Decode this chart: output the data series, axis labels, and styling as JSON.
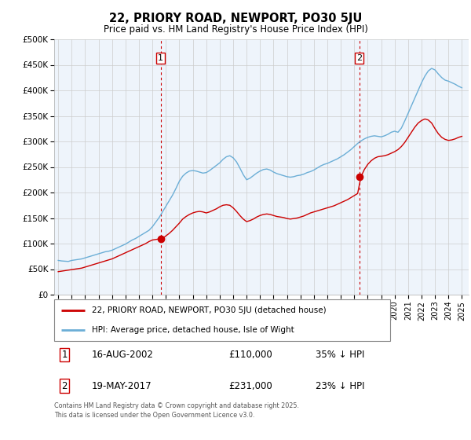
{
  "title": "22, PRIORY ROAD, NEWPORT, PO30 5JU",
  "subtitle": "Price paid vs. HM Land Registry's House Price Index (HPI)",
  "background_color": "#ffffff",
  "plot_bg_color": "#eef4fb",
  "grid_color": "#cccccc",
  "hpi_color": "#6baed6",
  "price_color": "#cc0000",
  "ylim": [
    0,
    500000
  ],
  "yticks": [
    0,
    50000,
    100000,
    150000,
    200000,
    250000,
    300000,
    350000,
    400000,
    450000,
    500000
  ],
  "ytick_labels": [
    "£0",
    "£50K",
    "£100K",
    "£150K",
    "£200K",
    "£250K",
    "£300K",
    "£350K",
    "£400K",
    "£450K",
    "£500K"
  ],
  "xlim_start": 1994.7,
  "xlim_end": 2025.5,
  "xticks": [
    1995,
    1996,
    1997,
    1998,
    1999,
    2000,
    2001,
    2002,
    2003,
    2004,
    2005,
    2006,
    2007,
    2008,
    2009,
    2010,
    2011,
    2012,
    2013,
    2014,
    2015,
    2016,
    2017,
    2018,
    2019,
    2020,
    2021,
    2022,
    2023,
    2024,
    2025
  ],
  "marker1_x": 2002.62,
  "marker1_y": 110000,
  "marker2_x": 2017.38,
  "marker2_y": 231000,
  "vline1_x": 2002.62,
  "vline2_x": 2017.38,
  "legend_label_price": "22, PRIORY ROAD, NEWPORT, PO30 5JU (detached house)",
  "legend_label_hpi": "HPI: Average price, detached house, Isle of Wight",
  "annotation1_num": "1",
  "annotation2_num": "2",
  "table_row1": [
    "1",
    "16-AUG-2002",
    "£110,000",
    "35% ↓ HPI"
  ],
  "table_row2": [
    "2",
    "19-MAY-2017",
    "£231,000",
    "23% ↓ HPI"
  ],
  "footer": "Contains HM Land Registry data © Crown copyright and database right 2025.\nThis data is licensed under the Open Government Licence v3.0.",
  "hpi_data": [
    [
      1995.0,
      67000
    ],
    [
      1995.25,
      66000
    ],
    [
      1995.5,
      65500
    ],
    [
      1995.75,
      65000
    ],
    [
      1996.0,
      67000
    ],
    [
      1996.25,
      68000
    ],
    [
      1996.5,
      69000
    ],
    [
      1996.75,
      70000
    ],
    [
      1997.0,
      72000
    ],
    [
      1997.25,
      74000
    ],
    [
      1997.5,
      76000
    ],
    [
      1997.75,
      78000
    ],
    [
      1998.0,
      80000
    ],
    [
      1998.25,
      82000
    ],
    [
      1998.5,
      84000
    ],
    [
      1998.75,
      85000
    ],
    [
      1999.0,
      87000
    ],
    [
      1999.25,
      90000
    ],
    [
      1999.5,
      93000
    ],
    [
      1999.75,
      96000
    ],
    [
      2000.0,
      99000
    ],
    [
      2000.25,
      103000
    ],
    [
      2000.5,
      107000
    ],
    [
      2000.75,
      110000
    ],
    [
      2001.0,
      114000
    ],
    [
      2001.25,
      118000
    ],
    [
      2001.5,
      122000
    ],
    [
      2001.75,
      126000
    ],
    [
      2002.0,
      133000
    ],
    [
      2002.25,
      142000
    ],
    [
      2002.5,
      151000
    ],
    [
      2002.75,
      162000
    ],
    [
      2003.0,
      173000
    ],
    [
      2003.25,
      184000
    ],
    [
      2003.5,
      195000
    ],
    [
      2003.75,
      208000
    ],
    [
      2004.0,
      222000
    ],
    [
      2004.25,
      232000
    ],
    [
      2004.5,
      238000
    ],
    [
      2004.75,
      242000
    ],
    [
      2005.0,
      243000
    ],
    [
      2005.25,
      242000
    ],
    [
      2005.5,
      240000
    ],
    [
      2005.75,
      238000
    ],
    [
      2006.0,
      239000
    ],
    [
      2006.25,
      243000
    ],
    [
      2006.5,
      248000
    ],
    [
      2006.75,
      253000
    ],
    [
      2007.0,
      258000
    ],
    [
      2007.25,
      265000
    ],
    [
      2007.5,
      270000
    ],
    [
      2007.75,
      272000
    ],
    [
      2008.0,
      268000
    ],
    [
      2008.25,
      260000
    ],
    [
      2008.5,
      248000
    ],
    [
      2008.75,
      235000
    ],
    [
      2009.0,
      225000
    ],
    [
      2009.25,
      228000
    ],
    [
      2009.5,
      233000
    ],
    [
      2009.75,
      238000
    ],
    [
      2010.0,
      242000
    ],
    [
      2010.25,
      245000
    ],
    [
      2010.5,
      246000
    ],
    [
      2010.75,
      244000
    ],
    [
      2011.0,
      240000
    ],
    [
      2011.25,
      237000
    ],
    [
      2011.5,
      235000
    ],
    [
      2011.75,
      233000
    ],
    [
      2012.0,
      231000
    ],
    [
      2012.25,
      230000
    ],
    [
      2012.5,
      231000
    ],
    [
      2012.75,
      233000
    ],
    [
      2013.0,
      234000
    ],
    [
      2013.25,
      236000
    ],
    [
      2013.5,
      239000
    ],
    [
      2013.75,
      241000
    ],
    [
      2014.0,
      244000
    ],
    [
      2014.25,
      248000
    ],
    [
      2014.5,
      252000
    ],
    [
      2014.75,
      255000
    ],
    [
      2015.0,
      257000
    ],
    [
      2015.25,
      260000
    ],
    [
      2015.5,
      263000
    ],
    [
      2015.75,
      266000
    ],
    [
      2016.0,
      270000
    ],
    [
      2016.25,
      274000
    ],
    [
      2016.5,
      279000
    ],
    [
      2016.75,
      284000
    ],
    [
      2017.0,
      290000
    ],
    [
      2017.25,
      296000
    ],
    [
      2017.5,
      301000
    ],
    [
      2017.75,
      305000
    ],
    [
      2018.0,
      308000
    ],
    [
      2018.25,
      310000
    ],
    [
      2018.5,
      311000
    ],
    [
      2018.75,
      310000
    ],
    [
      2019.0,
      309000
    ],
    [
      2019.25,
      311000
    ],
    [
      2019.5,
      314000
    ],
    [
      2019.75,
      318000
    ],
    [
      2020.0,
      320000
    ],
    [
      2020.25,
      318000
    ],
    [
      2020.5,
      326000
    ],
    [
      2020.75,
      340000
    ],
    [
      2021.0,
      355000
    ],
    [
      2021.25,
      370000
    ],
    [
      2021.5,
      385000
    ],
    [
      2021.75,
      400000
    ],
    [
      2022.0,
      415000
    ],
    [
      2022.25,
      428000
    ],
    [
      2022.5,
      438000
    ],
    [
      2022.75,
      443000
    ],
    [
      2023.0,
      440000
    ],
    [
      2023.25,
      432000
    ],
    [
      2023.5,
      425000
    ],
    [
      2023.75,
      420000
    ],
    [
      2024.0,
      418000
    ],
    [
      2024.25,
      415000
    ],
    [
      2024.5,
      412000
    ],
    [
      2024.75,
      408000
    ],
    [
      2025.0,
      405000
    ]
  ],
  "price_data": [
    [
      1995.0,
      45000
    ],
    [
      1995.25,
      46000
    ],
    [
      1995.5,
      47000
    ],
    [
      1995.75,
      48000
    ],
    [
      1996.0,
      49000
    ],
    [
      1996.25,
      50000
    ],
    [
      1996.5,
      51000
    ],
    [
      1996.75,
      52000
    ],
    [
      1997.0,
      54000
    ],
    [
      1997.25,
      56000
    ],
    [
      1997.5,
      58000
    ],
    [
      1997.75,
      60000
    ],
    [
      1998.0,
      62000
    ],
    [
      1998.25,
      64000
    ],
    [
      1998.5,
      66000
    ],
    [
      1998.75,
      68000
    ],
    [
      1999.0,
      70000
    ],
    [
      1999.25,
      73000
    ],
    [
      1999.5,
      76000
    ],
    [
      1999.75,
      79000
    ],
    [
      2000.0,
      82000
    ],
    [
      2000.25,
      85000
    ],
    [
      2000.5,
      88000
    ],
    [
      2000.75,
      91000
    ],
    [
      2001.0,
      94000
    ],
    [
      2001.25,
      97000
    ],
    [
      2001.5,
      100000
    ],
    [
      2001.75,
      104000
    ],
    [
      2002.0,
      107000
    ],
    [
      2002.25,
      108000
    ],
    [
      2002.5,
      109000
    ],
    [
      2002.75,
      110000
    ],
    [
      2003.0,
      115000
    ],
    [
      2003.25,
      120000
    ],
    [
      2003.5,
      126000
    ],
    [
      2003.75,
      133000
    ],
    [
      2004.0,
      140000
    ],
    [
      2004.25,
      148000
    ],
    [
      2004.5,
      153000
    ],
    [
      2004.75,
      157000
    ],
    [
      2005.0,
      160000
    ],
    [
      2005.25,
      162000
    ],
    [
      2005.5,
      163000
    ],
    [
      2005.75,
      162000
    ],
    [
      2006.0,
      160000
    ],
    [
      2006.25,
      162000
    ],
    [
      2006.5,
      165000
    ],
    [
      2006.75,
      168000
    ],
    [
      2007.0,
      172000
    ],
    [
      2007.25,
      175000
    ],
    [
      2007.5,
      176000
    ],
    [
      2007.75,
      175000
    ],
    [
      2008.0,
      170000
    ],
    [
      2008.25,
      163000
    ],
    [
      2008.5,
      155000
    ],
    [
      2008.75,
      148000
    ],
    [
      2009.0,
      143000
    ],
    [
      2009.25,
      145000
    ],
    [
      2009.5,
      148000
    ],
    [
      2009.75,
      152000
    ],
    [
      2010.0,
      155000
    ],
    [
      2010.25,
      157000
    ],
    [
      2010.5,
      158000
    ],
    [
      2010.75,
      157000
    ],
    [
      2011.0,
      155000
    ],
    [
      2011.25,
      153000
    ],
    [
      2011.5,
      152000
    ],
    [
      2011.75,
      151000
    ],
    [
      2012.0,
      149000
    ],
    [
      2012.25,
      148000
    ],
    [
      2012.5,
      149000
    ],
    [
      2012.75,
      150000
    ],
    [
      2013.0,
      152000
    ],
    [
      2013.25,
      154000
    ],
    [
      2013.5,
      157000
    ],
    [
      2013.75,
      160000
    ],
    [
      2014.0,
      162000
    ],
    [
      2014.25,
      164000
    ],
    [
      2014.5,
      166000
    ],
    [
      2014.75,
      168000
    ],
    [
      2015.0,
      170000
    ],
    [
      2015.25,
      172000
    ],
    [
      2015.5,
      174000
    ],
    [
      2015.75,
      177000
    ],
    [
      2016.0,
      180000
    ],
    [
      2016.25,
      183000
    ],
    [
      2016.5,
      186000
    ],
    [
      2016.75,
      190000
    ],
    [
      2017.0,
      194000
    ],
    [
      2017.25,
      198000
    ],
    [
      2017.5,
      231000
    ],
    [
      2017.75,
      245000
    ],
    [
      2018.0,
      255000
    ],
    [
      2018.25,
      262000
    ],
    [
      2018.5,
      267000
    ],
    [
      2018.75,
      270000
    ],
    [
      2019.0,
      271000
    ],
    [
      2019.25,
      272000
    ],
    [
      2019.5,
      274000
    ],
    [
      2019.75,
      277000
    ],
    [
      2020.0,
      280000
    ],
    [
      2020.25,
      284000
    ],
    [
      2020.5,
      290000
    ],
    [
      2020.75,
      298000
    ],
    [
      2021.0,
      308000
    ],
    [
      2021.25,
      318000
    ],
    [
      2021.5,
      328000
    ],
    [
      2021.75,
      336000
    ],
    [
      2022.0,
      341000
    ],
    [
      2022.25,
      344000
    ],
    [
      2022.5,
      342000
    ],
    [
      2022.75,
      336000
    ],
    [
      2023.0,
      325000
    ],
    [
      2023.25,
      315000
    ],
    [
      2023.5,
      308000
    ],
    [
      2023.75,
      304000
    ],
    [
      2024.0,
      302000
    ],
    [
      2024.25,
      303000
    ],
    [
      2024.5,
      305000
    ],
    [
      2024.75,
      308000
    ],
    [
      2025.0,
      310000
    ]
  ]
}
